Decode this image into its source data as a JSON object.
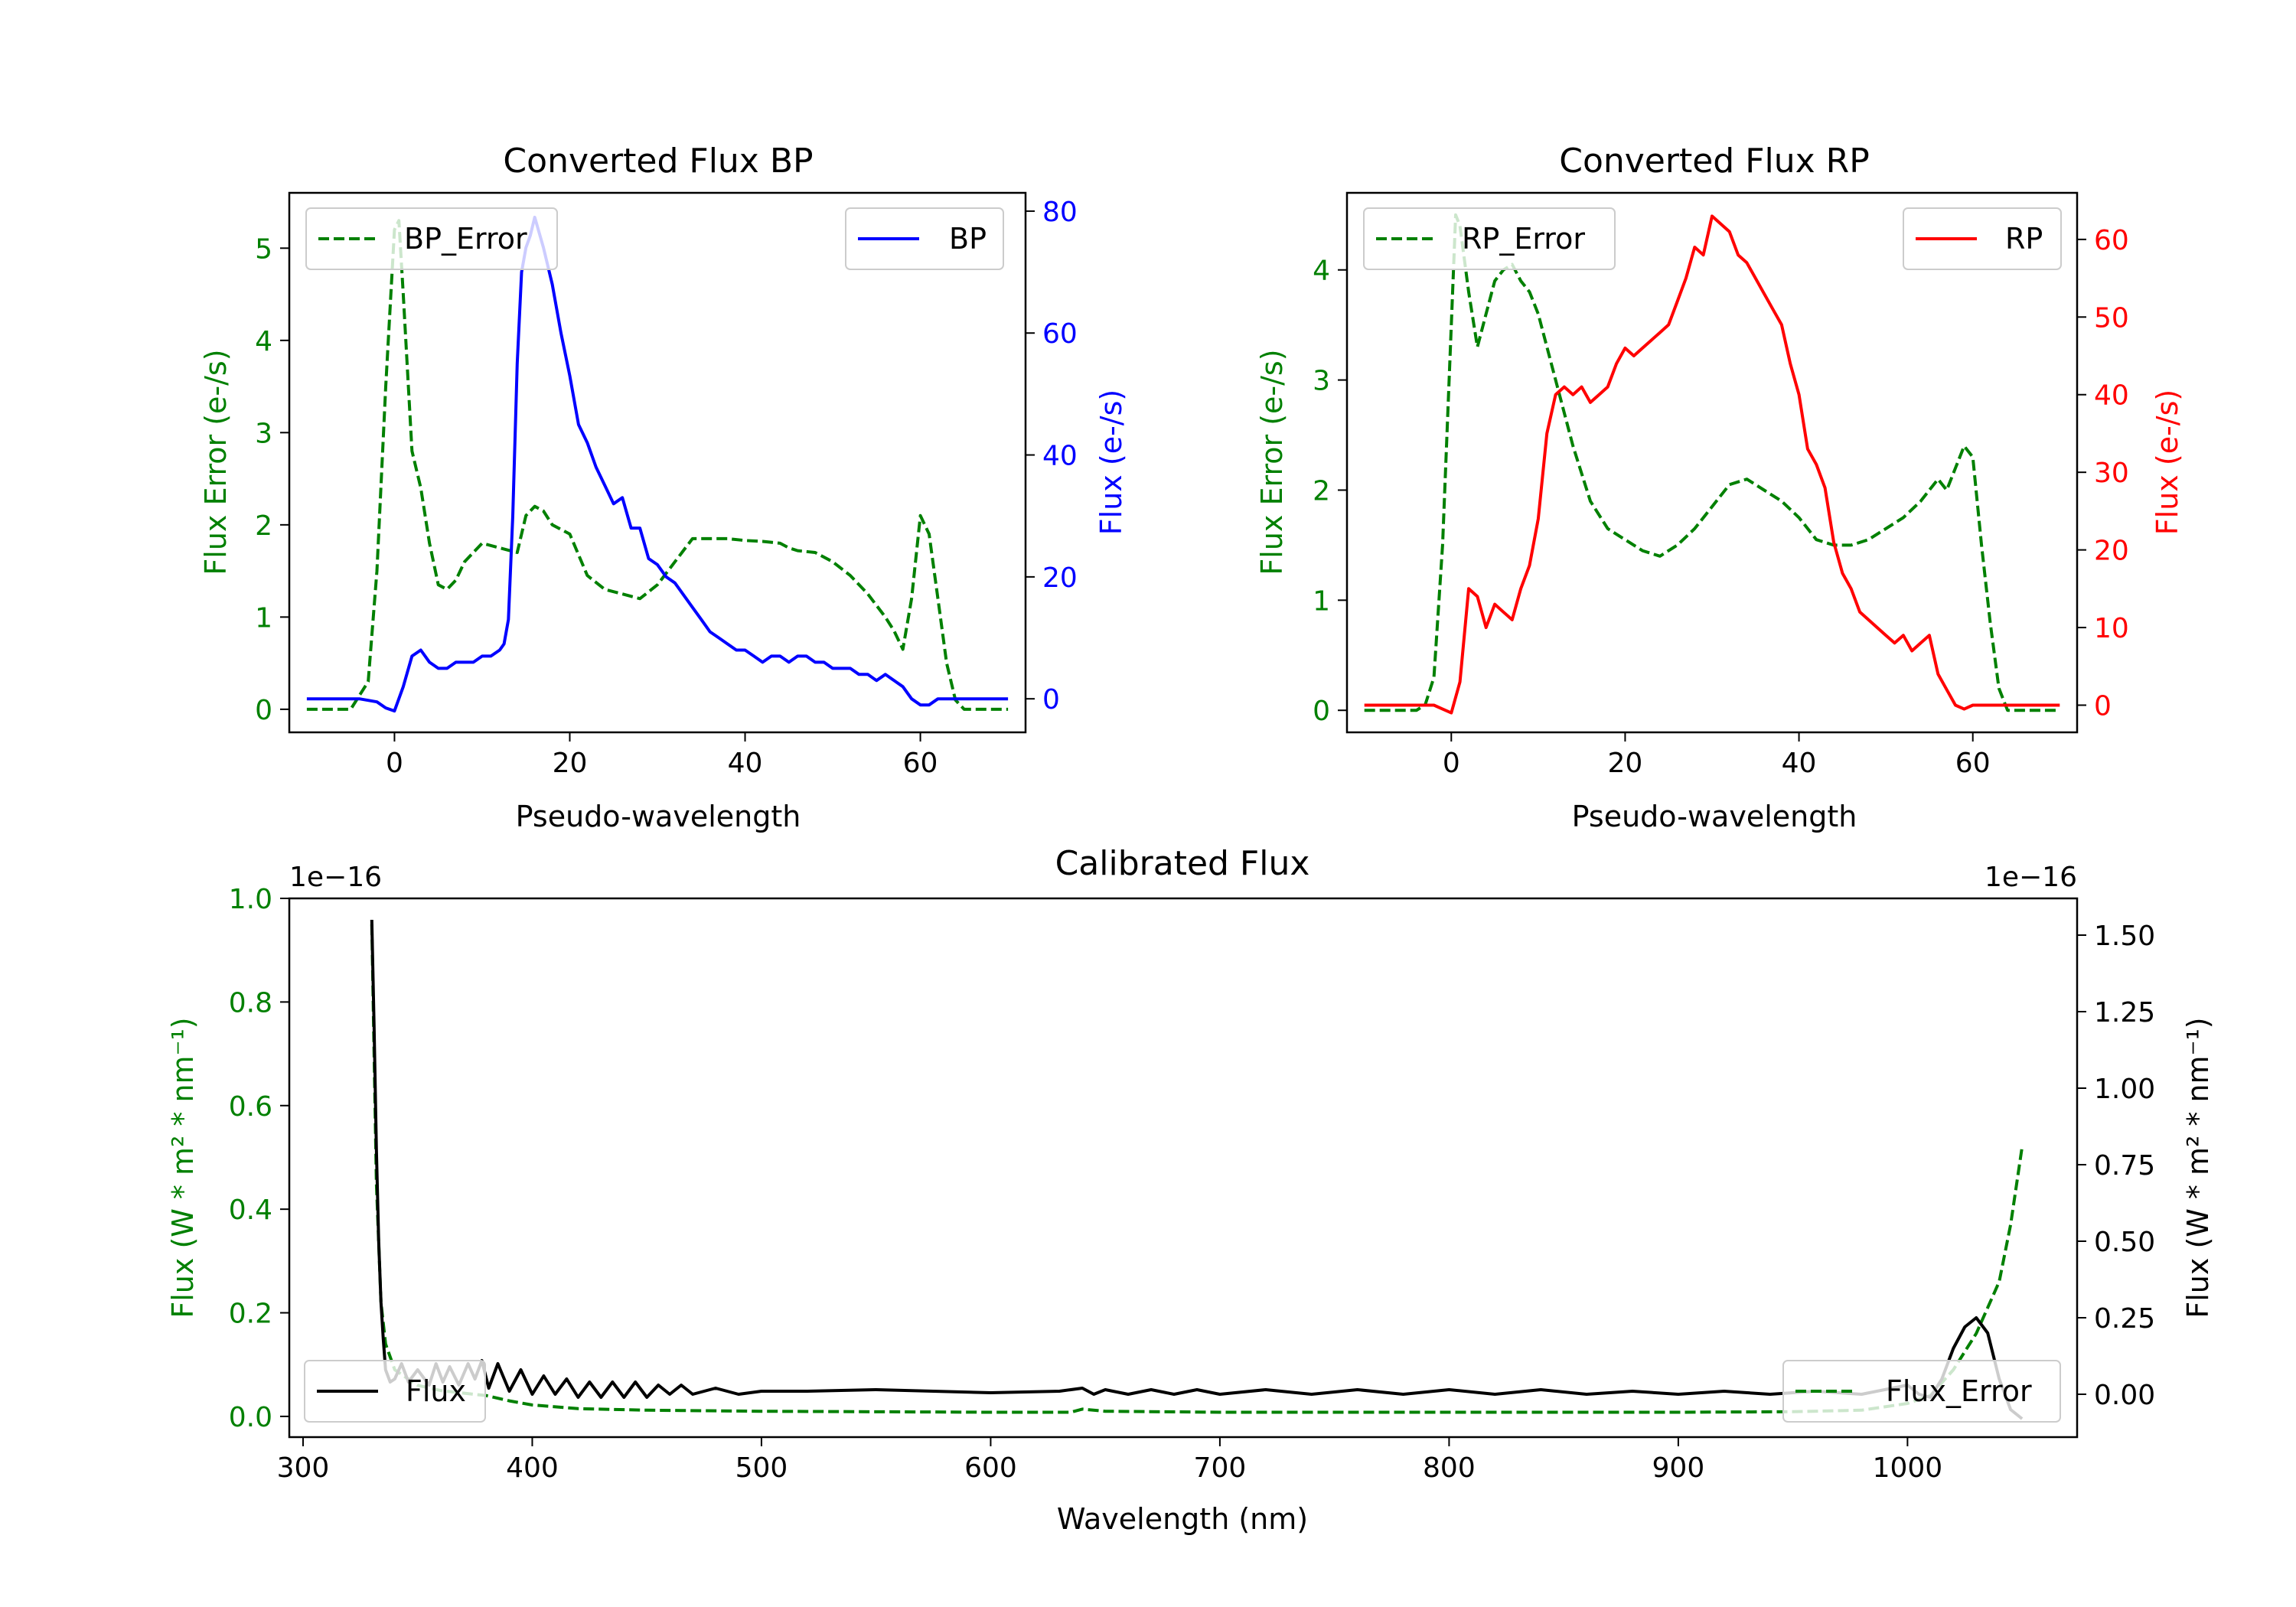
{
  "chart_data": [
    {
      "type": "line",
      "title": "Converted Flux BP",
      "xlabel": "Pseudo-wavelength",
      "ylabel_left": "Flux Error (e-/s)",
      "ylabel_right": "Flux (e-/s)",
      "xlim": [
        -12,
        72
      ],
      "ylim_left": [
        -0.25,
        5.6
      ],
      "ylim_right": [
        -5.5,
        83
      ],
      "xticks": [
        0,
        20,
        40,
        60
      ],
      "yticks_left": [
        0,
        1,
        2,
        3,
        4,
        5
      ],
      "yticks_right": [
        0,
        20,
        40,
        60,
        80
      ],
      "grid": false,
      "series": [
        {
          "name": "BP_Error",
          "axis": "left",
          "color": "#008000",
          "dash": "dashed",
          "legend": "top-left",
          "x": [
            -10,
            -5,
            -3,
            -2,
            -1,
            0,
            0.5,
            1,
            2,
            3,
            4,
            5,
            6,
            7,
            8,
            10,
            12,
            14,
            15,
            16,
            17,
            18,
            20,
            22,
            24,
            26,
            28,
            30,
            32,
            34,
            36,
            38,
            40,
            42,
            44,
            45,
            46,
            48,
            50,
            52,
            54,
            56,
            57,
            58,
            59,
            60,
            61,
            62,
            63,
            64,
            65,
            70
          ],
          "values": [
            0,
            0,
            0.3,
            1.5,
            3.5,
            5.2,
            5.3,
            4.5,
            2.8,
            2.4,
            1.8,
            1.35,
            1.3,
            1.4,
            1.6,
            1.8,
            1.75,
            1.7,
            2.1,
            2.2,
            2.15,
            2.0,
            1.9,
            1.45,
            1.3,
            1.25,
            1.2,
            1.35,
            1.6,
            1.85,
            1.85,
            1.85,
            1.83,
            1.82,
            1.8,
            1.75,
            1.72,
            1.7,
            1.6,
            1.45,
            1.25,
            1.0,
            0.85,
            0.65,
            1.2,
            2.1,
            1.9,
            1.2,
            0.5,
            0.1,
            0,
            0
          ]
        },
        {
          "name": "BP",
          "axis": "right",
          "color": "#0000ff",
          "dash": "solid",
          "legend": "top-right",
          "x": [
            -10,
            -4,
            -2,
            -1,
            0,
            1,
            2,
            3,
            4,
            5,
            6,
            7,
            8,
            9,
            10,
            11,
            12,
            12.5,
            13,
            13.5,
            14,
            14.5,
            15,
            15.5,
            16,
            17,
            18,
            19,
            20,
            21,
            22,
            23,
            24,
            25,
            26,
            27,
            28,
            29,
            30,
            31,
            32,
            33,
            34,
            35,
            36,
            37,
            38,
            39,
            40,
            41,
            42,
            43,
            44,
            45,
            46,
            47,
            48,
            49,
            50,
            51,
            52,
            53,
            54,
            55,
            56,
            57,
            58,
            59,
            60,
            61,
            62,
            63,
            64,
            65,
            70
          ],
          "values": [
            0,
            0,
            -0.5,
            -1.5,
            -2,
            2,
            7,
            8,
            6,
            5,
            5,
            6,
            6,
            6,
            7,
            7,
            8,
            9,
            13,
            30,
            55,
            70,
            74,
            76,
            79,
            74,
            68,
            60,
            53,
            45,
            42,
            38,
            35,
            32,
            33,
            28,
            28,
            23,
            22,
            20,
            19,
            17,
            15,
            13,
            11,
            10,
            9,
            8,
            8,
            7,
            6,
            7,
            7,
            6,
            7,
            7,
            6,
            6,
            5,
            5,
            5,
            4,
            4,
            3,
            4,
            3,
            2,
            0,
            -1,
            -1,
            0,
            0,
            0,
            0,
            0
          ]
        }
      ]
    },
    {
      "type": "line",
      "title": "Converted Flux RP",
      "xlabel": "Pseudo-wavelength",
      "ylabel_left": "Flux Error (e-/s)",
      "ylabel_right": "Flux (e-/s)",
      "xlim": [
        -12,
        72
      ],
      "ylim_left": [
        -0.2,
        4.7
      ],
      "ylim_right": [
        -3.5,
        66
      ],
      "xticks": [
        0,
        20,
        40,
        60
      ],
      "yticks_left": [
        0,
        1,
        2,
        3,
        4
      ],
      "yticks_right": [
        0,
        10,
        20,
        30,
        40,
        50,
        60
      ],
      "grid": false,
      "series": [
        {
          "name": "RP_Error",
          "axis": "left",
          "color": "#008000",
          "dash": "dashed",
          "legend": "top-left",
          "x": [
            -10,
            -4,
            -3,
            -2,
            -1,
            0,
            0.5,
            1,
            2,
            3,
            4,
            5,
            6,
            7,
            8,
            9,
            10,
            12,
            14,
            16,
            18,
            20,
            22,
            24,
            26,
            28,
            30,
            32,
            34,
            36,
            38,
            40,
            42,
            44,
            46,
            48,
            50,
            52,
            54,
            55,
            56,
            57,
            58,
            59,
            60,
            61,
            62,
            63,
            64,
            65,
            70
          ],
          "values": [
            0,
            0,
            0.05,
            0.3,
            1.5,
            3.5,
            4.5,
            4.4,
            3.8,
            3.3,
            3.6,
            3.9,
            4.0,
            4.05,
            3.9,
            3.8,
            3.6,
            3.0,
            2.4,
            1.9,
            1.65,
            1.55,
            1.45,
            1.4,
            1.5,
            1.65,
            1.85,
            2.05,
            2.1,
            2.0,
            1.9,
            1.75,
            1.55,
            1.5,
            1.5,
            1.55,
            1.65,
            1.75,
            1.9,
            2.0,
            2.1,
            2.0,
            2.2,
            2.4,
            2.3,
            1.5,
            0.8,
            0.2,
            0,
            0,
            0
          ]
        },
        {
          "name": "RP",
          "axis": "right",
          "color": "#ff0000",
          "dash": "solid",
          "legend": "top-right",
          "x": [
            -10,
            -4,
            -2,
            -1,
            0,
            1,
            2,
            3,
            4,
            5,
            6,
            7,
            8,
            9,
            10,
            11,
            12,
            13,
            14,
            15,
            16,
            17,
            18,
            19,
            20,
            21,
            22,
            23,
            24,
            25,
            26,
            27,
            28,
            29,
            30,
            31,
            32,
            33,
            34,
            35,
            36,
            37,
            38,
            39,
            40,
            41,
            42,
            43,
            44,
            45,
            46,
            47,
            48,
            49,
            50,
            51,
            52,
            53,
            54,
            55,
            56,
            57,
            58,
            59,
            60,
            61,
            62,
            63,
            64,
            65,
            70
          ],
          "values": [
            0,
            0,
            0,
            -0.5,
            -1,
            3,
            15,
            14,
            10,
            13,
            12,
            11,
            15,
            18,
            24,
            35,
            40,
            41,
            40,
            41,
            39,
            40,
            41,
            44,
            46,
            45,
            46,
            47,
            48,
            49,
            52,
            55,
            59,
            58,
            63,
            62,
            61,
            58,
            57,
            55,
            53,
            51,
            49,
            44,
            40,
            33,
            31,
            28,
            21,
            17,
            15,
            12,
            11,
            10,
            9,
            8,
            9,
            7,
            8,
            9,
            4,
            2,
            0,
            -0.5,
            0,
            0,
            0,
            0,
            0,
            0,
            0
          ]
        }
      ]
    },
    {
      "type": "line",
      "title": "Calibrated Flux",
      "xlabel": "Wavelength (nm)",
      "ylabel_left": "Flux (W * m² * nm⁻¹)",
      "ylabel_right": "Flux (W * m² * nm⁻¹)",
      "offset_left": "1e−16",
      "offset_right": "1e−16",
      "xlim": [
        294,
        1074
      ],
      "ylim_left": [
        -0.04,
        1.0
      ],
      "ylim_right": [
        -0.14,
        1.62
      ],
      "xticks": [
        300,
        400,
        500,
        600,
        700,
        800,
        900,
        1000
      ],
      "yticks_left": [
        0.0,
        0.2,
        0.4,
        0.6,
        0.8,
        1.0
      ],
      "yticks_left_labels": [
        "0.0",
        "0.2",
        "0.4",
        "0.6",
        "0.8",
        "1.0"
      ],
      "yticks_right": [
        0.0,
        0.25,
        0.5,
        0.75,
        1.0,
        1.25,
        1.5
      ],
      "yticks_right_labels": [
        "0.00",
        "0.25",
        "0.50",
        "0.75",
        "1.00",
        "1.25",
        "1.50"
      ],
      "grid": false,
      "series": [
        {
          "name": "Flux_Error",
          "axis": "left",
          "color": "#008000",
          "dash": "dashed",
          "legend": "bottom-right",
          "x": [
            330,
            332,
            334,
            336,
            340,
            345,
            350,
            360,
            370,
            380,
            390,
            400,
            420,
            450,
            500,
            600,
            635,
            640,
            650,
            700,
            800,
            900,
            950,
            980,
            1000,
            1010,
            1020,
            1030,
            1040,
            1045,
            1050
          ],
          "values": [
            0.95,
            0.45,
            0.22,
            0.14,
            0.09,
            0.075,
            0.06,
            0.05,
            0.045,
            0.04,
            0.03,
            0.022,
            0.015,
            0.012,
            0.01,
            0.008,
            0.008,
            0.014,
            0.01,
            0.008,
            0.008,
            0.008,
            0.009,
            0.012,
            0.025,
            0.04,
            0.09,
            0.16,
            0.26,
            0.37,
            0.52
          ]
        },
        {
          "name": "Flux",
          "axis": "right",
          "color": "#000000",
          "dash": "solid",
          "legend": "bottom-left",
          "x": [
            330,
            331,
            332,
            333,
            334,
            335,
            336,
            338,
            340,
            343,
            346,
            350,
            355,
            358,
            361,
            364,
            368,
            372,
            375,
            378,
            381,
            385,
            390,
            395,
            400,
            405,
            410,
            415,
            420,
            425,
            430,
            435,
            440,
            445,
            450,
            455,
            460,
            465,
            470,
            480,
            490,
            500,
            520,
            550,
            600,
            630,
            640,
            645,
            650,
            660,
            670,
            680,
            690,
            700,
            720,
            740,
            760,
            780,
            800,
            820,
            840,
            860,
            880,
            900,
            920,
            940,
            960,
            980,
            1000,
            1005,
            1010,
            1015,
            1020,
            1025,
            1030,
            1035,
            1040,
            1045,
            1050
          ],
          "values": [
            1.55,
            1.2,
            0.8,
            0.5,
            0.3,
            0.18,
            0.08,
            0.04,
            0.05,
            0.1,
            0.04,
            0.08,
            0.03,
            0.1,
            0.04,
            0.09,
            0.03,
            0.1,
            0.05,
            0.11,
            0.02,
            0.1,
            0.01,
            0.08,
            0.0,
            0.06,
            0.0,
            0.05,
            -0.01,
            0.04,
            -0.01,
            0.04,
            -0.01,
            0.04,
            -0.01,
            0.03,
            0.0,
            0.03,
            0.0,
            0.02,
            0.0,
            0.01,
            0.01,
            0.015,
            0.005,
            0.01,
            0.02,
            0.0,
            0.015,
            0.0,
            0.015,
            0.0,
            0.015,
            0.0,
            0.015,
            0.0,
            0.015,
            0.0,
            0.015,
            0.0,
            0.015,
            0.0,
            0.01,
            0.0,
            0.01,
            0.0,
            0.01,
            0.0,
            0.03,
            0.0,
            -0.01,
            0.05,
            0.15,
            0.22,
            0.25,
            0.2,
            0.05,
            -0.05,
            -0.08
          ]
        }
      ]
    }
  ]
}
